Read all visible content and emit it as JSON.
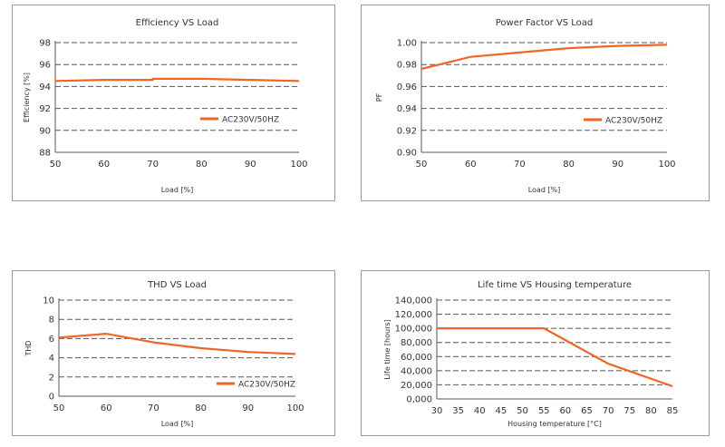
{
  "colors": {
    "series": "#f26522",
    "grid": "#555555",
    "text": "#333333",
    "frame": "#9a9a9a"
  },
  "chart_data": [
    {
      "type": "line",
      "title": "Efficiency VS Load",
      "xlabel": "Load [%]",
      "ylabel": "Efficiency [%]",
      "xticks": [
        "50",
        "60",
        "70",
        "80",
        "90",
        "100"
      ],
      "yticks": [
        "88",
        "90",
        "92",
        "94",
        "96",
        "98"
      ],
      "xlim": [
        50,
        100
      ],
      "ylim": [
        88,
        98
      ],
      "legend": "AC230V/50HZ",
      "legend_position": "middle-right",
      "series": [
        {
          "name": "AC230V/50HZ",
          "x": [
            50,
            60,
            70,
            70,
            80,
            90,
            100
          ],
          "y": [
            94.5,
            94.6,
            94.6,
            94.7,
            94.7,
            94.6,
            94.5
          ]
        }
      ]
    },
    {
      "type": "line",
      "title": "Power Factor VS Load",
      "xlabel": "Load [%]",
      "ylabel": "PF",
      "xticks": [
        "50",
        "60",
        "70",
        "80",
        "90",
        "100"
      ],
      "yticks": [
        "0.90",
        "0.92",
        "0.94",
        "0.96",
        "0.98",
        "1.00"
      ],
      "xlim": [
        50,
        100
      ],
      "ylim": [
        0.9,
        1.0
      ],
      "legend": "AC230V/50HZ",
      "legend_position": "middle-right",
      "series": [
        {
          "name": "AC230V/50HZ",
          "x": [
            50,
            60,
            70,
            80,
            90,
            100
          ],
          "y": [
            0.976,
            0.987,
            0.991,
            0.995,
            0.997,
            0.998
          ]
        }
      ]
    },
    {
      "type": "line",
      "title": "THD VS Load",
      "xlabel": "Load [%]",
      "ylabel": "THD",
      "xticks": [
        "50",
        "60",
        "70",
        "80",
        "90",
        "100"
      ],
      "yticks": [
        "0",
        "2",
        "4",
        "6",
        "8",
        "10"
      ],
      "xlim": [
        50,
        100
      ],
      "ylim": [
        0,
        10
      ],
      "legend": "AC230V/50HZ",
      "legend_position": "bottom-right",
      "series": [
        {
          "name": "AC230V/50HZ",
          "x": [
            50,
            60,
            70,
            80,
            90,
            100
          ],
          "y": [
            6.1,
            6.5,
            5.6,
            5.0,
            4.6,
            4.4
          ]
        }
      ]
    },
    {
      "type": "line",
      "title": "Life time VS Housing temperature",
      "xlabel": "Housing temperature [°C]",
      "ylabel": "Life time [hours]",
      "xticks": [
        "30",
        "35",
        "40",
        "45",
        "50",
        "55",
        "60",
        "65",
        "70",
        "75",
        "80",
        "85"
      ],
      "yticks": [
        "0,000",
        "20,000",
        "40,000",
        "60,000",
        "80,000",
        "100,000",
        "120,000",
        "140,000"
      ],
      "xlim": [
        30,
        85
      ],
      "ylim": [
        0,
        140000
      ],
      "legend": "",
      "series": [
        {
          "name": "Life time",
          "x": [
            30,
            55,
            70,
            85
          ],
          "y": [
            100000,
            100000,
            50000,
            18000
          ]
        }
      ]
    }
  ]
}
